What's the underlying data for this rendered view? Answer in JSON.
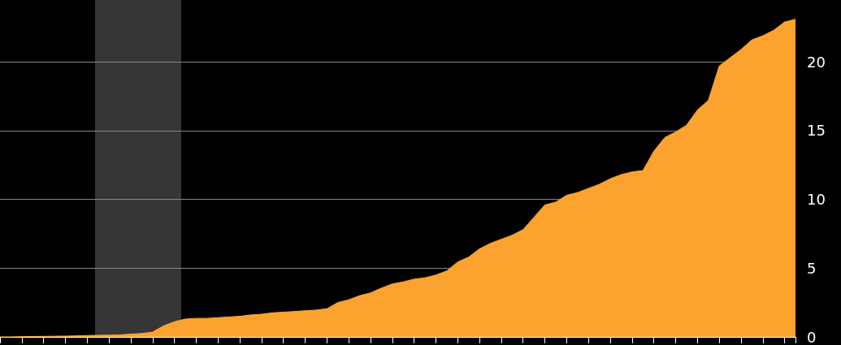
{
  "chart_data": {
    "type": "area",
    "categories": [
      null,
      null,
      null,
      null,
      null,
      null,
      null,
      null,
      null,
      null,
      null,
      null,
      null,
      null,
      null,
      null,
      null,
      null,
      null,
      null,
      null,
      null,
      null,
      null,
      null,
      null,
      null,
      null,
      null,
      null,
      null,
      null,
      null,
      null,
      null,
      null,
      null,
      null,
      null,
      null,
      null,
      null,
      null,
      null,
      null,
      null,
      null,
      null,
      null,
      null,
      null,
      null,
      null,
      null,
      null,
      null,
      null,
      null,
      null,
      null,
      null,
      null,
      null,
      null,
      null,
      null,
      null,
      null,
      null,
      null,
      null,
      null,
      null,
      null
    ],
    "series": [
      {
        "color": "#fba32e",
        "values": [
          0,
          0,
          0.02,
          0.03,
          0.04,
          0.05,
          0.06,
          0.08,
          0.1,
          0.12,
          0.13,
          0.15,
          0.2,
          0.25,
          0.35,
          0.8,
          1.1,
          1.3,
          1.35,
          1.35,
          1.4,
          1.45,
          1.5,
          1.6,
          1.65,
          1.75,
          1.8,
          1.85,
          1.9,
          1.95,
          2.05,
          2.5,
          2.7,
          3.0,
          3.2,
          3.55,
          3.85,
          4.0,
          4.2,
          4.3,
          4.5,
          4.8,
          5.45,
          5.8,
          6.4,
          6.8,
          7.1,
          7.4,
          7.8,
          8.7,
          9.6,
          9.8,
          10.3,
          10.5,
          10.8,
          11.1,
          11.5,
          11.8,
          12.0,
          12.1,
          13.5,
          14.5,
          14.9,
          15.4,
          16.5,
          17.2,
          19.7,
          20.3,
          20.9,
          21.6,
          21.9,
          22.3,
          22.9,
          23.1
        ]
      }
    ],
    "ylim": [
      0,
      24.5
    ],
    "yticks": [
      0,
      5,
      10,
      15,
      20
    ],
    "grid": "y",
    "tick_labels": "y"
  }
}
